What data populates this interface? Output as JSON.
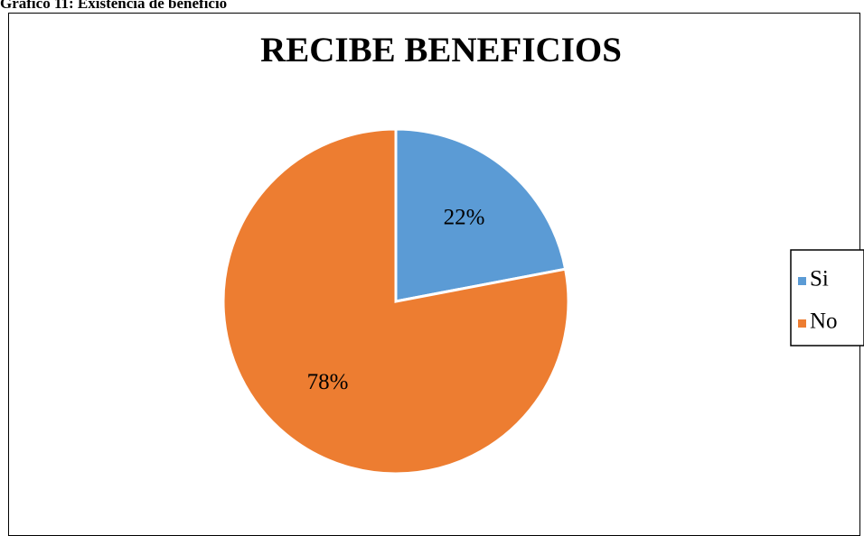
{
  "caption": "Gráfico 11: Existencia de beneficio",
  "chart_data": {
    "type": "pie",
    "title": "RECIBE BENEFICIOS",
    "categories": [
      "Si",
      "No"
    ],
    "values": [
      22,
      78
    ],
    "data_labels": [
      "22%",
      "78%"
    ],
    "colors": [
      "#5b9bd5",
      "#ed7d31"
    ],
    "legend_position": "right"
  }
}
